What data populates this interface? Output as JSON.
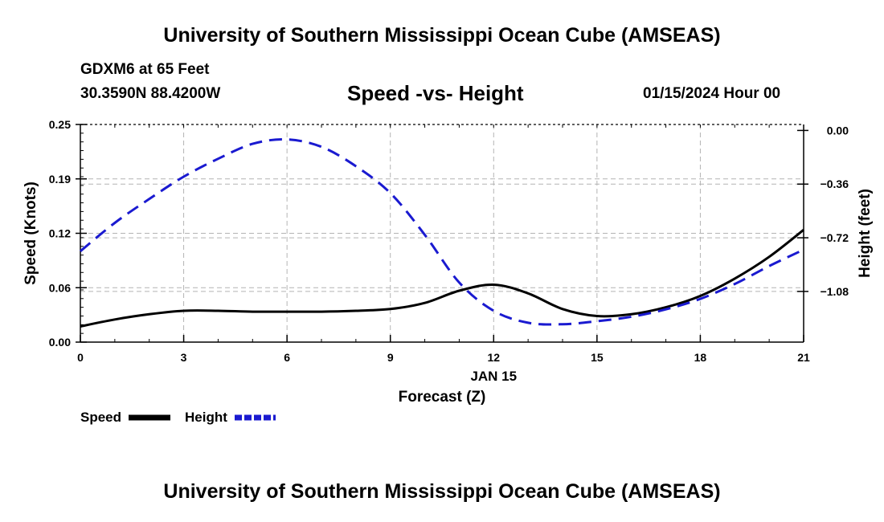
{
  "header": {
    "title": "University of Southern Mississippi Ocean Cube (AMSEAS)",
    "station": "GDXM6 at 65 Feet",
    "coordinates": "30.3590N  88.4200W",
    "chart_title": "Speed -vs- Height",
    "datetime": "01/15/2024 Hour 00"
  },
  "footer": {
    "title": "University of Southern Mississippi Ocean Cube (AMSEAS)"
  },
  "colors": {
    "speed": "#000000",
    "height": "#1a1ad0",
    "grid": "#b4b4b4"
  },
  "chart_data": {
    "type": "line",
    "title": "Speed -vs- Height",
    "xlabel": "Forecast (Z)",
    "xlabel_date": "JAN 15",
    "ylabel_left": "Speed (Knots)",
    "ylabel_right": "Height (feet)",
    "xlim": [
      0,
      21
    ],
    "ylim_left": [
      0,
      0.25
    ],
    "ylim_right": [
      -1.42,
      0.04
    ],
    "x_ticks": [
      0,
      3,
      6,
      9,
      12,
      15,
      18,
      21
    ],
    "x_tick_labels": [
      "0",
      "3",
      "6",
      "9",
      "12",
      "15",
      "18",
      "21"
    ],
    "y_left_ticks": [
      0.0,
      0.0625,
      0.125,
      0.1875,
      0.25
    ],
    "y_left_tick_labels": [
      "0.00",
      "0.06",
      "0.12",
      "0.19",
      "0.25"
    ],
    "y_right_ticks": [
      0.0,
      -0.36,
      -0.72,
      -1.08
    ],
    "y_right_tick_labels": [
      "0.00",
      "−0.36",
      "−0.72",
      "−1.08"
    ],
    "grid": true,
    "legend_position": "bottom-left",
    "series": [
      {
        "name": "Speed",
        "axis": "left",
        "style": "solid",
        "x": [
          0,
          1,
          2,
          3,
          4,
          5,
          6,
          7,
          8,
          9,
          10,
          11,
          12,
          13,
          14,
          15,
          16,
          17,
          18,
          19,
          20,
          21
        ],
        "values": [
          0.018,
          0.026,
          0.032,
          0.036,
          0.036,
          0.035,
          0.035,
          0.035,
          0.036,
          0.038,
          0.045,
          0.059,
          0.066,
          0.056,
          0.038,
          0.03,
          0.032,
          0.04,
          0.053,
          0.073,
          0.098,
          0.129
        ]
      },
      {
        "name": "Height",
        "axis": "right",
        "style": "dashed",
        "x": [
          0,
          1,
          2,
          3,
          4,
          5,
          6,
          7,
          8,
          9,
          10,
          11,
          12,
          13,
          14,
          15,
          16,
          17,
          18,
          19,
          20,
          21
        ],
        "values": [
          -0.81,
          -0.62,
          -0.46,
          -0.31,
          -0.19,
          -0.09,
          -0.06,
          -0.11,
          -0.24,
          -0.42,
          -0.7,
          -1.02,
          -1.21,
          -1.29,
          -1.3,
          -1.28,
          -1.25,
          -1.2,
          -1.13,
          -1.03,
          -0.91,
          -0.8
        ]
      }
    ]
  }
}
